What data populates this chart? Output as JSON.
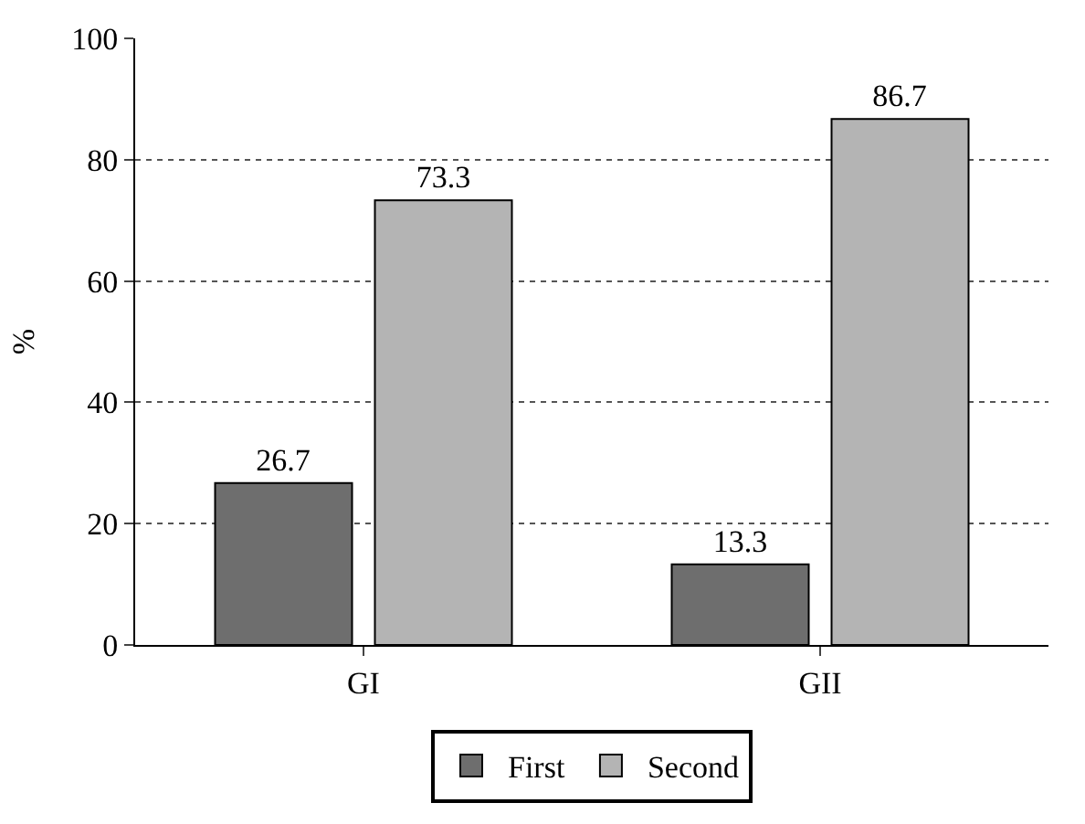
{
  "chart_data": {
    "type": "bar",
    "categories": [
      "GI",
      "GII"
    ],
    "ylabel": "%",
    "ylim": [
      0,
      100
    ],
    "yticks": [
      0,
      20,
      40,
      60,
      80,
      100
    ],
    "grid": "y",
    "legend": "bottom",
    "data_labels": true,
    "series": [
      {
        "name": "First",
        "color": "#6e6e6e",
        "values": [
          26.7,
          13.3
        ]
      },
      {
        "name": "Second",
        "color": "#b4b4b4",
        "values": [
          73.3,
          86.7
        ]
      }
    ]
  }
}
